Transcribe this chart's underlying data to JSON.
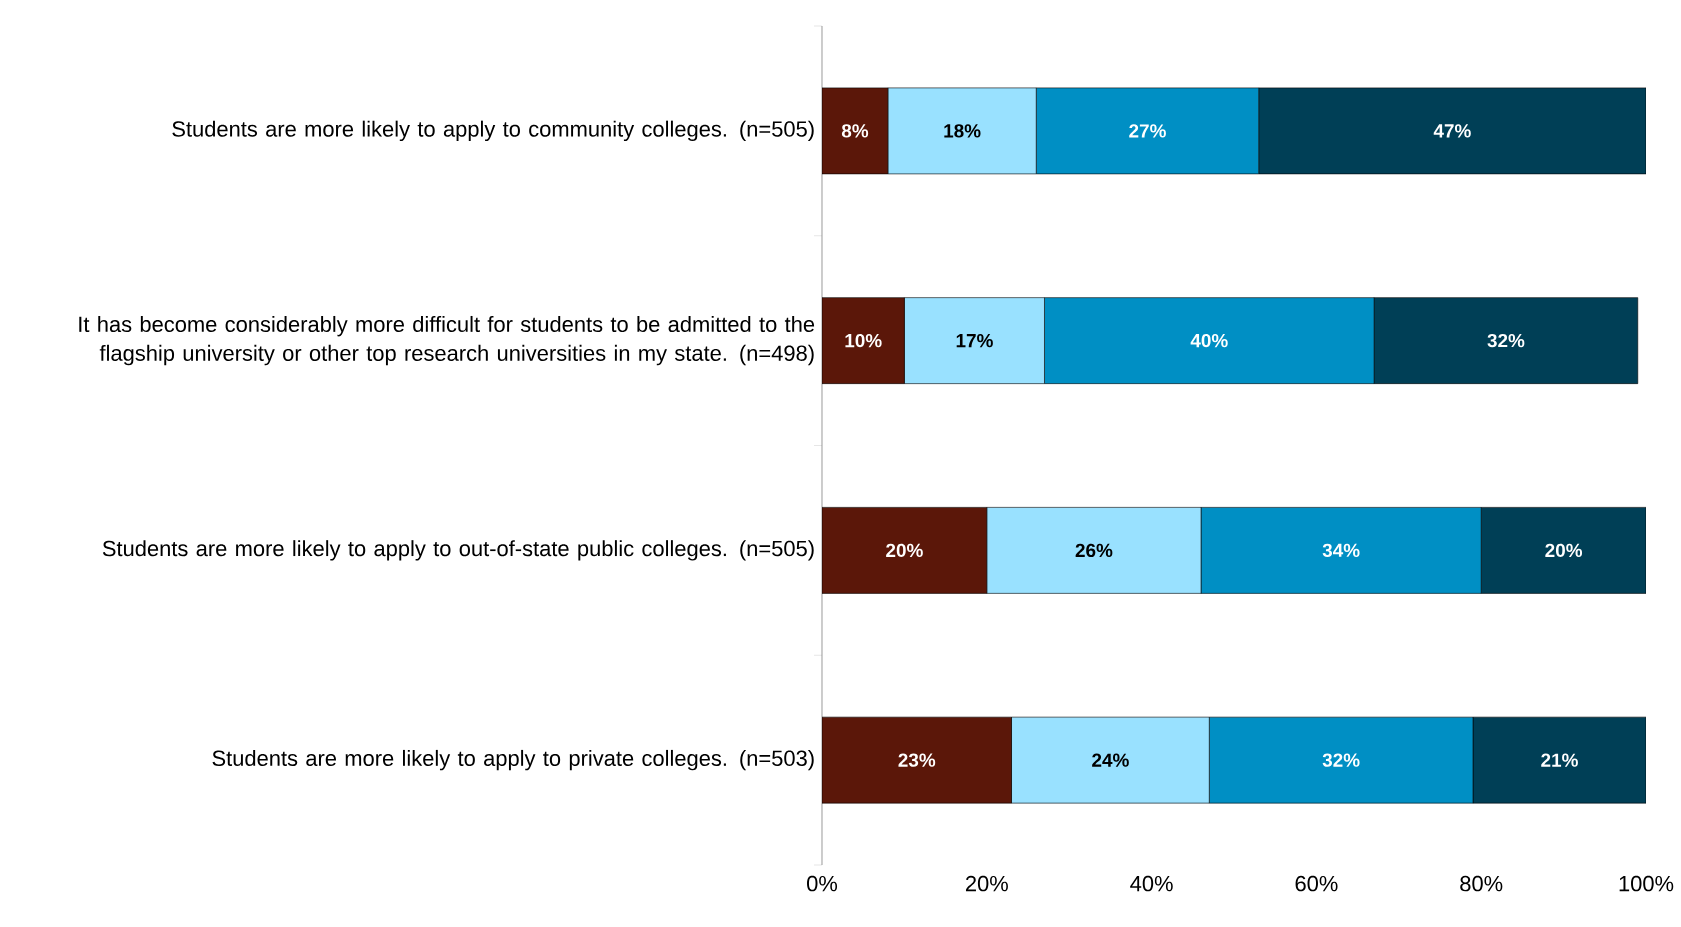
{
  "chart_data": {
    "type": "bar",
    "orientation": "horizontal",
    "stacked": true,
    "categories": [
      "Students are more likely to  apply to community colleges. (n=505)",
      "It has become considerably more difficult for students to be admitted to the flagship university or other top research universities in my state. (n=498)",
      "Students are more likely to apply to out-of-state public colleges. (n=505)",
      "Students are more likely to apply to private colleges. (n=503)"
    ],
    "series": [
      {
        "color": "#5b1709",
        "values": [
          8,
          10,
          20,
          23
        ],
        "value_labels": [
          "8%",
          "10%",
          "20%",
          "23%"
        ]
      },
      {
        "color": "#99e1ff",
        "values": [
          18,
          17,
          26,
          24
        ],
        "value_labels": [
          "18%",
          "17%",
          "26%",
          "24%"
        ]
      },
      {
        "color": "#008fc4",
        "values": [
          27,
          40,
          34,
          32
        ],
        "value_labels": [
          "27%",
          "40%",
          "34%",
          "32%"
        ]
      },
      {
        "color": "#003f56",
        "values": [
          47,
          32,
          20,
          21
        ],
        "value_labels": [
          "47%",
          "32%",
          "20%",
          "21%"
        ]
      }
    ],
    "xlim": [
      0,
      100
    ],
    "xticks": [
      {
        "value": 0,
        "label": "0%"
      },
      {
        "value": 20,
        "label": "20%"
      },
      {
        "value": 40,
        "label": "40%"
      },
      {
        "value": 60,
        "label": "60%"
      },
      {
        "value": 80,
        "label": "80%"
      },
      {
        "value": 100,
        "label": "100%"
      }
    ],
    "grid": false
  }
}
